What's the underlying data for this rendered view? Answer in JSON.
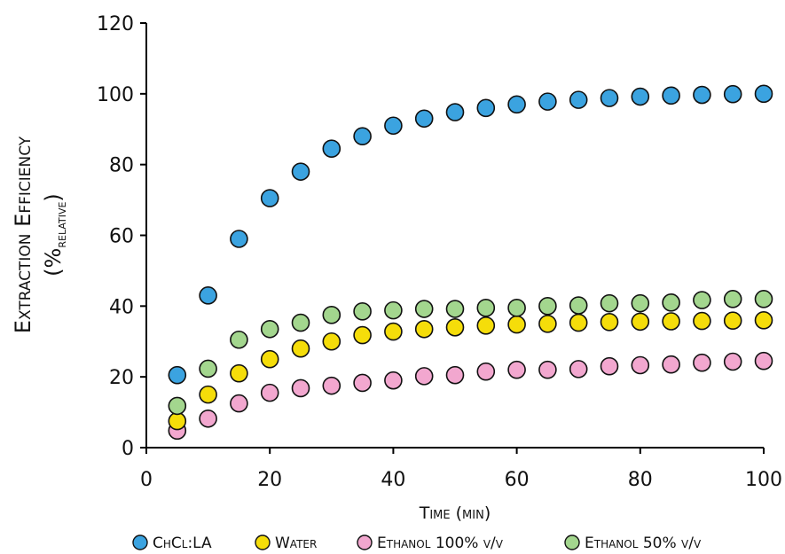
{
  "chart_data": {
    "type": "scatter",
    "xlabel": "Time (min)",
    "ylabel_line1": "Extraction Efficiency",
    "ylabel_line2_prefix": "(%",
    "ylabel_line2_sub": "relative",
    "ylabel_line2_suffix": ")",
    "xlim": [
      0,
      100
    ],
    "ylim": [
      0,
      120
    ],
    "xticks": [
      0,
      20,
      40,
      60,
      80,
      100
    ],
    "yticks": [
      0,
      20,
      40,
      60,
      80,
      100,
      120
    ],
    "grid": false,
    "legend_position": "bottom",
    "x": [
      5,
      10,
      15,
      20,
      25,
      30,
      35,
      40,
      45,
      50,
      55,
      60,
      65,
      70,
      75,
      80,
      85,
      90,
      95,
      100
    ],
    "series": [
      {
        "name": "ChCl:LA",
        "color": "#3ba3e0",
        "values": [
          20.5,
          43,
          59,
          70.5,
          78,
          84.5,
          88,
          91,
          93,
          94.8,
          96,
          97,
          97.8,
          98.3,
          98.8,
          99.2,
          99.5,
          99.7,
          99.9,
          100
        ]
      },
      {
        "name": "Water",
        "color": "#f5dd0a",
        "values": [
          7.5,
          15,
          21,
          25,
          28,
          30,
          31.8,
          32.8,
          33.5,
          34,
          34.5,
          34.8,
          35,
          35.3,
          35.5,
          35.6,
          35.7,
          35.8,
          35.9,
          36
        ]
      },
      {
        "name": "Ethanol 100% v/v",
        "color": "#f2a7cf",
        "values": [
          4.8,
          8.2,
          12.5,
          15.5,
          16.8,
          17.5,
          18.3,
          19,
          20.2,
          20.5,
          21.5,
          22,
          22,
          22.2,
          23,
          23.3,
          23.5,
          24,
          24.3,
          24.5
        ]
      },
      {
        "name": "Ethanol 50% v/v",
        "color": "#a3d68e",
        "values": [
          11.8,
          22.3,
          30.5,
          33.5,
          35.3,
          37.5,
          38.5,
          38.8,
          39.2,
          39.2,
          39.5,
          39.5,
          40,
          40.2,
          40.8,
          40.8,
          41,
          41.7,
          42,
          42
        ]
      }
    ]
  }
}
